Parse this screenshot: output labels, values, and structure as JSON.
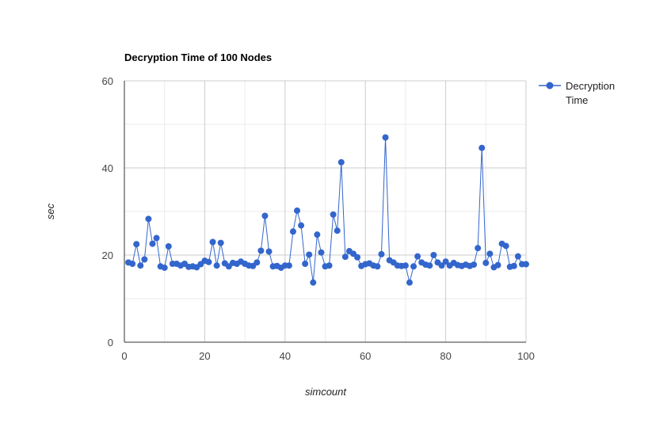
{
  "chart_data": {
    "type": "line",
    "title": "Decryption Time of 100 Nodes",
    "xlabel": "simcount",
    "ylabel": "sec",
    "xlim": [
      0,
      100
    ],
    "ylim": [
      0,
      60
    ],
    "xticks": [
      "0",
      "20",
      "40",
      "60",
      "80",
      "100"
    ],
    "yticks": [
      "0",
      "20",
      "40",
      "60"
    ],
    "grid": true,
    "legend_position": "right",
    "series": [
      {
        "name": "Decryption Time",
        "color": "#3366cc",
        "marker": "circle",
        "x": [
          1,
          2,
          3,
          4,
          5,
          6,
          7,
          8,
          9,
          10,
          11,
          12,
          13,
          14,
          15,
          16,
          17,
          18,
          19,
          20,
          21,
          22,
          23,
          24,
          25,
          26,
          27,
          28,
          29,
          30,
          31,
          32,
          33,
          34,
          35,
          36,
          37,
          38,
          39,
          40,
          41,
          42,
          43,
          44,
          45,
          46,
          47,
          48,
          49,
          50,
          51,
          52,
          53,
          54,
          55,
          56,
          57,
          58,
          59,
          60,
          61,
          62,
          63,
          64,
          65,
          66,
          67,
          68,
          69,
          70,
          71,
          72,
          73,
          74,
          75,
          76,
          77,
          78,
          79,
          80,
          81,
          82,
          83,
          84,
          85,
          86,
          87,
          88,
          89,
          90,
          91,
          92,
          93,
          94,
          95,
          96,
          97,
          98,
          99,
          100
        ],
        "y": [
          18.3,
          18.0,
          22.5,
          17.6,
          19.0,
          28.3,
          22.6,
          23.9,
          17.4,
          17.1,
          22.0,
          18.0,
          18.0,
          17.6,
          18.0,
          17.3,
          17.4,
          17.2,
          17.9,
          18.7,
          18.4,
          23.0,
          17.6,
          22.8,
          18.1,
          17.4,
          18.2,
          18.0,
          18.5,
          18.0,
          17.6,
          17.5,
          18.3,
          21.0,
          29.0,
          20.8,
          17.4,
          17.5,
          17.1,
          17.6,
          17.6,
          25.4,
          30.2,
          26.8,
          18.0,
          20.1,
          13.7,
          24.7,
          20.6,
          17.4,
          17.6,
          29.3,
          25.6,
          41.3,
          19.6,
          20.9,
          20.3,
          19.5,
          17.5,
          17.9,
          18.1,
          17.6,
          17.4,
          20.2,
          47.0,
          18.8,
          18.3,
          17.6,
          17.5,
          17.6,
          13.7,
          17.4,
          19.7,
          18.3,
          17.8,
          17.6,
          20.0,
          18.3,
          17.6,
          18.5,
          17.6,
          18.2,
          17.7,
          17.5,
          17.8,
          17.5,
          17.8,
          21.6,
          44.6,
          18.2,
          20.3,
          17.2,
          17.7,
          22.6,
          22.1,
          17.3,
          17.5,
          19.7,
          17.9,
          17.9
        ]
      }
    ]
  }
}
